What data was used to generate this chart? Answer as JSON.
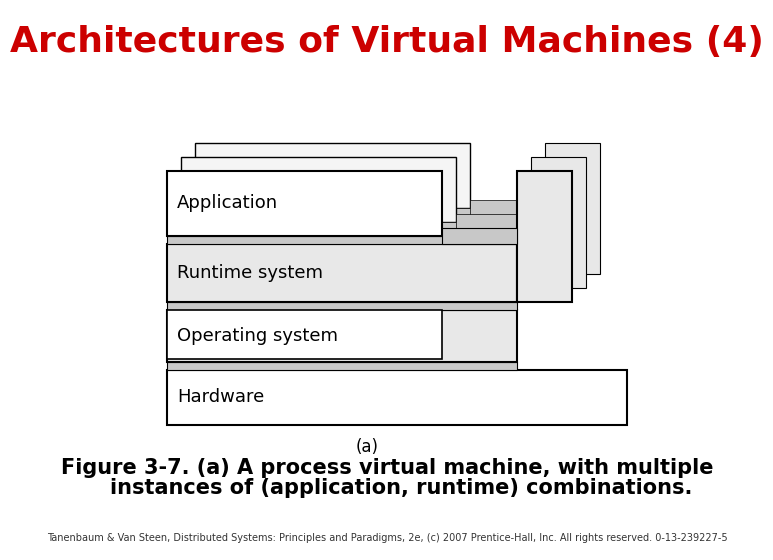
{
  "title": "Architectures of Virtual Machines (4)",
  "title_color": "#cc0000",
  "title_fontsize": 26,
  "bg_color": "#ffffff",
  "figure_caption": "(a)",
  "figure_text_line1": "Figure 3-7. (a) A process virtual machine, with multiple",
  "figure_text_line2": "    instances of (application, runtime) combinations.",
  "figure_text_fontsize": 15,
  "copyright_text": "Tanenbaum & Van Steen, Distributed Systems: Principles and Paradigms, 2e, (c) 2007 Prentice-Hall, Inc. All rights reserved. 0-13-239227-5",
  "copyright_fontsize": 7,
  "border_col": "#000000",
  "gray_light": "#e8e8e8",
  "gray_mid": "#c8c8c8",
  "gray_dark": "#b0b0b0",
  "shadow_gray": "#d0d0d0"
}
